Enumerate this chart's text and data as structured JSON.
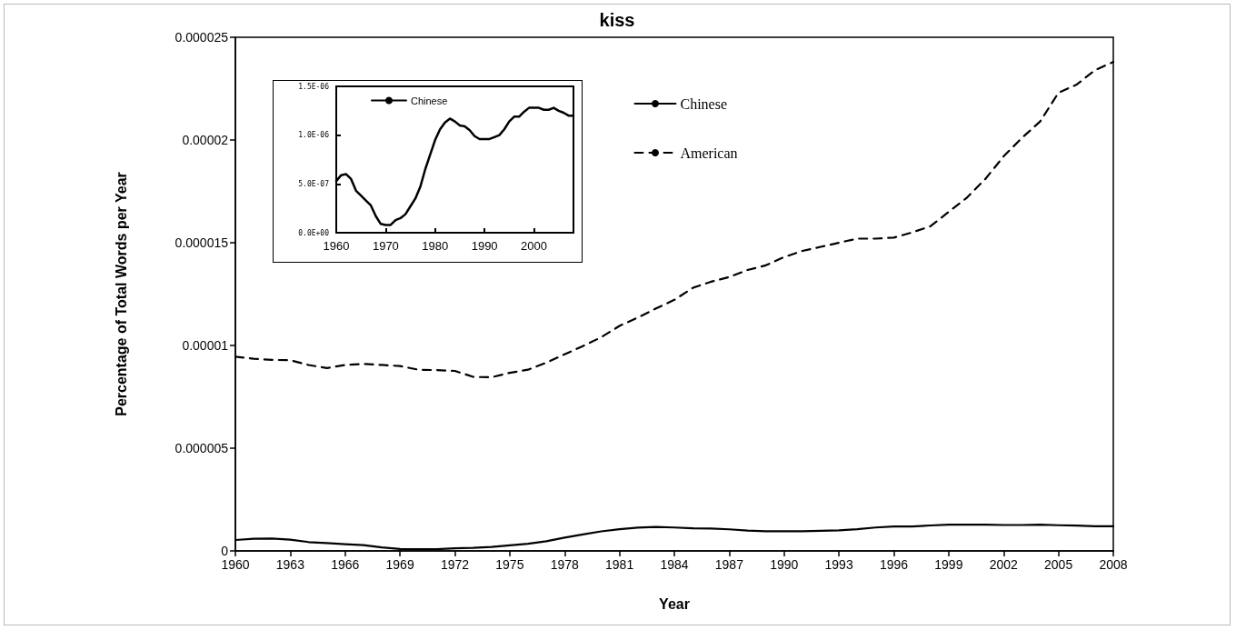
{
  "chart_data": [
    {
      "type": "line",
      "title": "kiss",
      "xlabel": "Year",
      "ylabel": "Percentage of Total Words per Year",
      "x": [
        1960,
        1961,
        1962,
        1963,
        1964,
        1965,
        1966,
        1967,
        1968,
        1969,
        1970,
        1971,
        1972,
        1973,
        1974,
        1975,
        1976,
        1977,
        1978,
        1979,
        1980,
        1981,
        1982,
        1983,
        1984,
        1985,
        1986,
        1987,
        1988,
        1989,
        1990,
        1991,
        1992,
        1993,
        1994,
        1995,
        1996,
        1997,
        1998,
        1999,
        2000,
        2001,
        2002,
        2003,
        2004,
        2005,
        2006,
        2007,
        2008
      ],
      "series": [
        {
          "name": "Chinese",
          "color": "#000000",
          "line_style": "solid",
          "values": [
            5.3e-07,
            5.9e-07,
            6e-07,
            5.5e-07,
            4.3e-07,
            3.8e-07,
            3.3e-07,
            2.8e-07,
            1.7e-07,
            9e-08,
            8e-08,
            8e-08,
            1.3e-07,
            1.5e-07,
            1.9e-07,
            2.7e-07,
            3.5e-07,
            4.7e-07,
            6.5e-07,
            8e-07,
            9.5e-07,
            1.06e-06,
            1.13e-06,
            1.17e-06,
            1.14e-06,
            1.1e-06,
            1.09e-06,
            1.05e-06,
            9.9e-07,
            9.6e-07,
            9.6e-07,
            9.6e-07,
            9.8e-07,
            1e-06,
            1.06e-06,
            1.14e-06,
            1.19e-06,
            1.19e-06,
            1.24e-06,
            1.28e-06,
            1.28e-06,
            1.28e-06,
            1.26e-06,
            1.26e-06,
            1.28e-06,
            1.25e-06,
            1.23e-06,
            1.2e-06,
            1.2e-06
          ]
        },
        {
          "name": "American",
          "color": "#000000",
          "line_style": "dashed",
          "values": [
            9.45e-06,
            9.35e-06,
            9.3e-06,
            9.28e-06,
            9.05e-06,
            8.9e-06,
            9.05e-06,
            9.1e-06,
            9.05e-06,
            9e-06,
            8.82e-06,
            8.8e-06,
            8.76e-06,
            8.47e-06,
            8.45e-06,
            8.67e-06,
            8.82e-06,
            9.16e-06,
            9.57e-06,
            9.97e-06,
            1.04e-05,
            1.095e-05,
            1.136e-05,
            1.18e-05,
            1.222e-05,
            1.28e-05,
            1.31e-05,
            1.333e-05,
            1.367e-05,
            1.39e-05,
            1.43e-05,
            1.46e-05,
            1.48e-05,
            1.5e-05,
            1.52e-05,
            1.52e-05,
            1.525e-05,
            1.55e-05,
            1.58e-05,
            1.65e-05,
            1.72e-05,
            1.81e-05,
            1.92e-05,
            2.01e-05,
            2.09e-05,
            2.23e-05,
            2.27e-05,
            2.34e-05,
            2.38e-05
          ]
        }
      ],
      "xlim": [
        1960,
        2008
      ],
      "xticks": [
        1960,
        1963,
        1966,
        1969,
        1972,
        1975,
        1978,
        1981,
        1984,
        1987,
        1990,
        1993,
        1996,
        1999,
        2002,
        2005,
        2008
      ],
      "ylim": [
        0,
        2.5e-05
      ],
      "yticks": [
        0,
        {
          "value": 5e-06,
          "label": "0.000005"
        },
        {
          "value": 1e-05,
          "label": "0.00001"
        },
        {
          "value": 1.5e-05,
          "label": "0.000015"
        },
        {
          "value": 2e-05,
          "label": "0.00002"
        },
        {
          "value": 2.5e-05,
          "label": "0.000025"
        }
      ],
      "legend": "top",
      "marker": "none",
      "grid": false
    },
    {
      "type": "line",
      "x": [
        1960,
        1961,
        1962,
        1963,
        1964,
        1965,
        1966,
        1967,
        1968,
        1969,
        1970,
        1971,
        1972,
        1973,
        1974,
        1975,
        1976,
        1977,
        1978,
        1979,
        1980,
        1981,
        1982,
        1983,
        1984,
        1985,
        1986,
        1987,
        1988,
        1989,
        1990,
        1991,
        1992,
        1993,
        1994,
        1995,
        1996,
        1997,
        1998,
        1999,
        2000,
        2001,
        2002,
        2003,
        2004,
        2005,
        2006,
        2007,
        2008
      ],
      "series": [
        {
          "name": "Chinese",
          "color": "#000000",
          "line_style": "solid",
          "values": [
            5.3e-07,
            5.9e-07,
            6e-07,
            5.5e-07,
            4.3e-07,
            3.8e-07,
            3.3e-07,
            2.8e-07,
            1.7e-07,
            9e-08,
            8e-08,
            8e-08,
            1.3e-07,
            1.5e-07,
            1.9e-07,
            2.7e-07,
            3.5e-07,
            4.7e-07,
            6.5e-07,
            8e-07,
            9.5e-07,
            1.06e-06,
            1.13e-06,
            1.17e-06,
            1.14e-06,
            1.1e-06,
            1.09e-06,
            1.05e-06,
            9.9e-07,
            9.6e-07,
            9.6e-07,
            9.6e-07,
            9.8e-07,
            1e-06,
            1.06e-06,
            1.14e-06,
            1.19e-06,
            1.19e-06,
            1.24e-06,
            1.28e-06,
            1.28e-06,
            1.28e-06,
            1.26e-06,
            1.26e-06,
            1.28e-06,
            1.25e-06,
            1.23e-06,
            1.2e-06,
            1.2e-06
          ]
        }
      ],
      "xlim": [
        1960,
        2008
      ],
      "xticks": [
        1960,
        1970,
        1980,
        1990,
        2000
      ],
      "ylim": [
        0,
        1.5e-06
      ],
      "yticks": [
        {
          "value": 0,
          "label": "0.0E+00"
        },
        {
          "value": 5e-07,
          "label": "5.0E-07"
        },
        {
          "value": 1e-06,
          "label": "1.0E-06"
        },
        {
          "value": 1.5e-06,
          "label": "1.5E-06"
        }
      ],
      "legend": "top left",
      "marker": "none",
      "grid": false
    }
  ]
}
